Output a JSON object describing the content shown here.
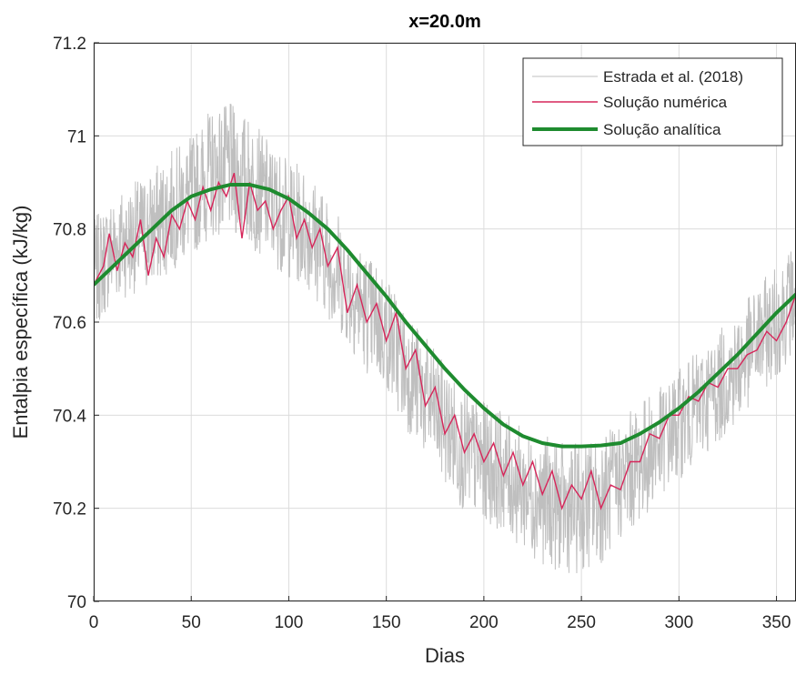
{
  "chart_data": {
    "type": "line",
    "title": "x=20.0m",
    "xlabel": "Dias",
    "ylabel": "Entalpia específica (kJ/kg)",
    "xlim": [
      0,
      360
    ],
    "ylim": [
      70,
      71.2
    ],
    "x_ticks": [
      0,
      50,
      100,
      150,
      200,
      250,
      300,
      350
    ],
    "y_ticks": [
      70,
      70.2,
      70.4,
      70.6,
      70.8,
      71,
      71.2
    ],
    "x_tick_labels": [
      "0",
      "50",
      "100",
      "150",
      "200",
      "250",
      "300",
      "350"
    ],
    "y_tick_labels": [
      "70",
      "70.2",
      "70.4",
      "70.6",
      "70.8",
      "71",
      "71.2"
    ],
    "grid": true,
    "legend_position": "top-right",
    "series": [
      {
        "name": "Estrada et al. (2018)",
        "color": "#bfbfbf",
        "x": [
          0,
          10,
          20,
          30,
          40,
          50,
          60,
          70,
          80,
          90,
          100,
          110,
          120,
          130,
          140,
          150,
          160,
          170,
          180,
          190,
          200,
          210,
          220,
          230,
          240,
          250,
          260,
          270,
          280,
          290,
          300,
          310,
          320,
          330,
          340,
          350,
          360
        ],
        "y": [
          70.7,
          70.76,
          70.78,
          70.8,
          70.84,
          70.87,
          70.92,
          70.93,
          70.9,
          70.86,
          70.82,
          70.8,
          70.74,
          70.68,
          70.62,
          70.58,
          70.5,
          70.44,
          70.38,
          70.32,
          70.3,
          70.28,
          70.24,
          70.22,
          70.2,
          70.2,
          70.22,
          70.26,
          70.3,
          70.34,
          70.38,
          70.42,
          70.46,
          70.5,
          70.56,
          70.6,
          70.66
        ],
        "band": [
          0.12,
          0.12,
          0.12,
          0.13,
          0.13,
          0.13,
          0.14,
          0.14,
          0.14,
          0.13,
          0.13,
          0.13,
          0.13,
          0.13,
          0.13,
          0.13,
          0.13,
          0.13,
          0.13,
          0.13,
          0.13,
          0.13,
          0.13,
          0.14,
          0.14,
          0.14,
          0.14,
          0.13,
          0.13,
          0.12,
          0.12,
          0.12,
          0.12,
          0.12,
          0.12,
          0.12,
          0.12
        ]
      },
      {
        "name": "Solução numérica",
        "color": "#d6265a",
        "x": [
          0,
          5,
          8,
          12,
          16,
          20,
          24,
          28,
          32,
          36,
          40,
          44,
          48,
          52,
          56,
          60,
          64,
          68,
          72,
          76,
          80,
          84,
          88,
          92,
          96,
          100,
          104,
          108,
          112,
          116,
          120,
          125,
          130,
          135,
          140,
          145,
          150,
          155,
          160,
          165,
          170,
          175,
          180,
          185,
          190,
          195,
          200,
          205,
          210,
          215,
          220,
          225,
          230,
          235,
          240,
          245,
          250,
          255,
          260,
          265,
          270,
          275,
          280,
          285,
          290,
          295,
          300,
          305,
          310,
          315,
          320,
          325,
          330,
          335,
          340,
          345,
          350,
          355,
          360
        ],
        "y": [
          70.68,
          70.72,
          70.79,
          70.71,
          70.77,
          70.74,
          70.82,
          70.7,
          70.78,
          70.74,
          70.83,
          70.8,
          70.86,
          70.82,
          70.89,
          70.84,
          70.9,
          70.87,
          70.92,
          70.78,
          70.9,
          70.84,
          70.86,
          70.8,
          70.84,
          70.87,
          70.78,
          70.82,
          70.76,
          70.8,
          70.72,
          70.76,
          70.62,
          70.68,
          70.6,
          70.64,
          70.56,
          70.62,
          70.5,
          70.54,
          70.42,
          70.46,
          70.36,
          70.4,
          70.32,
          70.36,
          70.3,
          70.34,
          70.27,
          70.32,
          70.25,
          70.3,
          70.23,
          70.28,
          70.2,
          70.25,
          70.22,
          70.28,
          70.2,
          70.25,
          70.24,
          70.3,
          70.3,
          70.36,
          70.35,
          70.4,
          70.4,
          70.44,
          70.43,
          70.47,
          70.46,
          70.5,
          70.5,
          70.53,
          70.54,
          70.58,
          70.56,
          70.6,
          70.66
        ]
      },
      {
        "name": "Solução analítica",
        "color": "#1e8b2f",
        "x": [
          0,
          10,
          20,
          30,
          40,
          50,
          60,
          70,
          80,
          90,
          100,
          110,
          120,
          130,
          140,
          150,
          160,
          170,
          180,
          190,
          200,
          210,
          220,
          230,
          240,
          250,
          260,
          270,
          280,
          290,
          300,
          310,
          320,
          330,
          340,
          350,
          360
        ],
        "y": [
          70.68,
          70.72,
          70.76,
          70.8,
          70.84,
          70.87,
          70.885,
          70.895,
          70.895,
          70.885,
          70.865,
          70.835,
          70.8,
          70.755,
          70.705,
          70.655,
          70.6,
          70.55,
          70.5,
          70.455,
          70.415,
          70.38,
          70.355,
          70.34,
          70.333,
          70.333,
          70.335,
          70.34,
          70.36,
          70.385,
          70.415,
          70.45,
          70.49,
          70.53,
          70.575,
          70.62,
          70.66
        ]
      }
    ]
  }
}
